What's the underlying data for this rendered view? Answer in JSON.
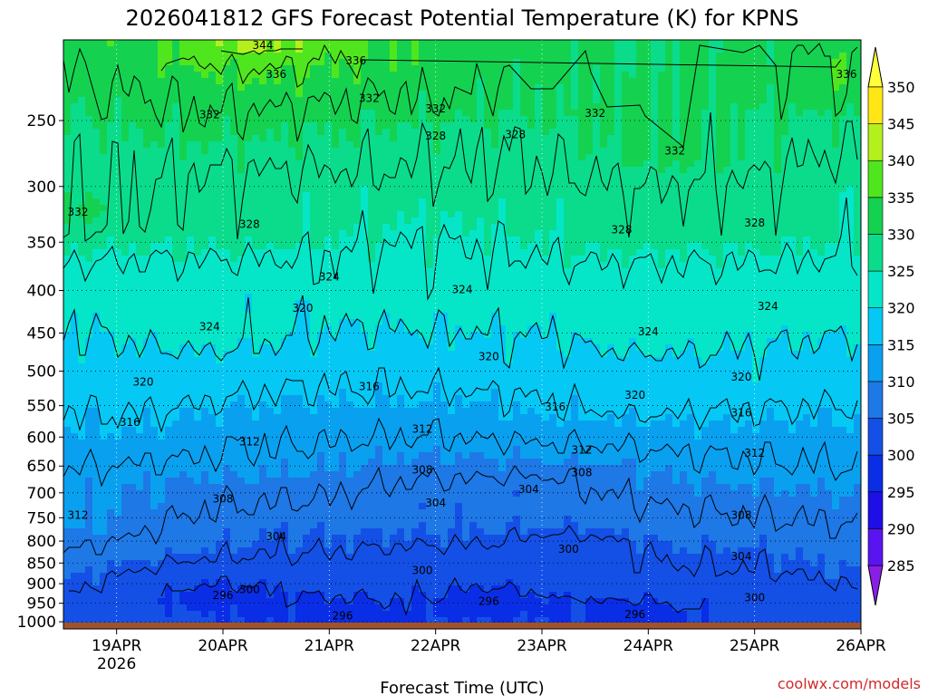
{
  "chart_data": {
    "type": "heatmap",
    "title": "2026041812 GFS Forecast Potential Temperature (K) for KPNS",
    "xlabel": "Forecast Time (UTC)",
    "ylabel": "",
    "x_ticks": [
      "19APR",
      "20APR",
      "21APR",
      "22APR",
      "23APR",
      "24APR",
      "25APR",
      "26APR"
    ],
    "x_year_label": "2026",
    "x_range": [
      "2026-04-18T12",
      "2026-04-26T00"
    ],
    "y_ticks": [
      250,
      300,
      350,
      400,
      450,
      500,
      550,
      600,
      650,
      700,
      750,
      800,
      850,
      900,
      950,
      1000
    ],
    "y_scale": "log",
    "y_range": [
      200,
      1020
    ],
    "colorbar_levels": [
      285,
      290,
      295,
      300,
      305,
      310,
      315,
      320,
      325,
      330,
      335,
      340,
      345,
      350
    ],
    "colorbar_colors": [
      "#8a1ee6",
      "#5a14f0",
      "#1e0fe6",
      "#0a2de6",
      "#1450e6",
      "#1e78e6",
      "#0aa0f0",
      "#05c8f5",
      "#05e6c8",
      "#0adc8c",
      "#14d250",
      "#50e61e",
      "#b4f01e",
      "#ffe614",
      "#ffff3c"
    ],
    "contour_interval": 4,
    "contour_labels": [
      {
        "value": "344",
        "time": "2026-04-20T09",
        "p": 203
      },
      {
        "value": "336",
        "time": "2026-04-21T06",
        "p": 212
      },
      {
        "value": "336",
        "time": "2026-04-20T12",
        "p": 220
      },
      {
        "value": "336",
        "time": "2026-04-25T21",
        "p": 220
      },
      {
        "value": "332",
        "time": "2026-04-21T09",
        "p": 235
      },
      {
        "value": "332",
        "time": "2026-04-22T00",
        "p": 242
      },
      {
        "value": "332",
        "time": "2026-04-23T12",
        "p": 245
      },
      {
        "value": "332",
        "time": "2026-04-19T21",
        "p": 246
      },
      {
        "value": "332",
        "time": "2026-04-24T06",
        "p": 272
      },
      {
        "value": "328",
        "time": "2026-04-22T00",
        "p": 261
      },
      {
        "value": "328",
        "time": "2026-04-22T18",
        "p": 260
      },
      {
        "value": "332",
        "time": "2026-04-18T12",
        "p": 322
      },
      {
        "value": "328",
        "time": "2026-04-20T06",
        "p": 333
      },
      {
        "value": "328",
        "time": "2026-04-23T18",
        "p": 338
      },
      {
        "value": "328",
        "time": "2026-04-25T00",
        "p": 332
      },
      {
        "value": "324",
        "time": "2026-04-21T00",
        "p": 385
      },
      {
        "value": "324",
        "time": "2026-04-22T06",
        "p": 399
      },
      {
        "value": "324",
        "time": "2026-04-19T21",
        "p": 442
      },
      {
        "value": "320",
        "time": "2026-04-20T18",
        "p": 420
      },
      {
        "value": "324",
        "time": "2026-04-24T00",
        "p": 448
      },
      {
        "value": "324",
        "time": "2026-04-25T03",
        "p": 418
      },
      {
        "value": "320",
        "time": "2026-04-22T12",
        "p": 480
      },
      {
        "value": "320",
        "time": "2026-04-19T06",
        "p": 515
      },
      {
        "value": "316",
        "time": "2026-04-21T09",
        "p": 522
      },
      {
        "value": "320",
        "time": "2026-04-23T21",
        "p": 534
      },
      {
        "value": "320",
        "time": "2026-04-24T21",
        "p": 508
      },
      {
        "value": "316",
        "time": "2026-04-23T03",
        "p": 552
      },
      {
        "value": "316",
        "time": "2026-04-19T03",
        "p": 576
      },
      {
        "value": "316",
        "time": "2026-04-24T21",
        "p": 561
      },
      {
        "value": "312",
        "time": "2026-04-20T06",
        "p": 608
      },
      {
        "value": "312",
        "time": "2026-04-21T21",
        "p": 587
      },
      {
        "value": "312",
        "time": "2026-04-23T09",
        "p": 622
      },
      {
        "value": "312",
        "time": "2026-04-25T00",
        "p": 627
      },
      {
        "value": "308",
        "time": "2026-04-21T21",
        "p": 657
      },
      {
        "value": "308",
        "time": "2026-04-23T09",
        "p": 662
      },
      {
        "value": "308",
        "time": "2026-04-20T00",
        "p": 712
      },
      {
        "value": "304",
        "time": "2026-04-22T00",
        "p": 720
      },
      {
        "value": "304",
        "time": "2026-04-22T21",
        "p": 693
      },
      {
        "value": "312",
        "time": "2026-04-18T12",
        "p": 745
      },
      {
        "value": "308",
        "time": "2026-04-24T21",
        "p": 745
      },
      {
        "value": "304",
        "time": "2026-04-20T12",
        "p": 790
      },
      {
        "value": "300",
        "time": "2026-04-23T06",
        "p": 818
      },
      {
        "value": "304",
        "time": "2026-04-24T21",
        "p": 835
      },
      {
        "value": "300",
        "time": "2026-04-21T21",
        "p": 868
      },
      {
        "value": "300",
        "time": "2026-04-20T06",
        "p": 915
      },
      {
        "value": "296",
        "time": "2026-04-20T00",
        "p": 930
      },
      {
        "value": "296",
        "time": "2026-04-22T12",
        "p": 945
      },
      {
        "value": "300",
        "time": "2026-04-25T00",
        "p": 935
      },
      {
        "value": "296",
        "time": "2026-04-21T03",
        "p": 983
      },
      {
        "value": "296",
        "time": "2026-04-23T21",
        "p": 980
      }
    ],
    "grid": true,
    "colorbar_position": "right",
    "surface_fill_color": "#a0522d"
  },
  "credit": "coolwx.com/models"
}
